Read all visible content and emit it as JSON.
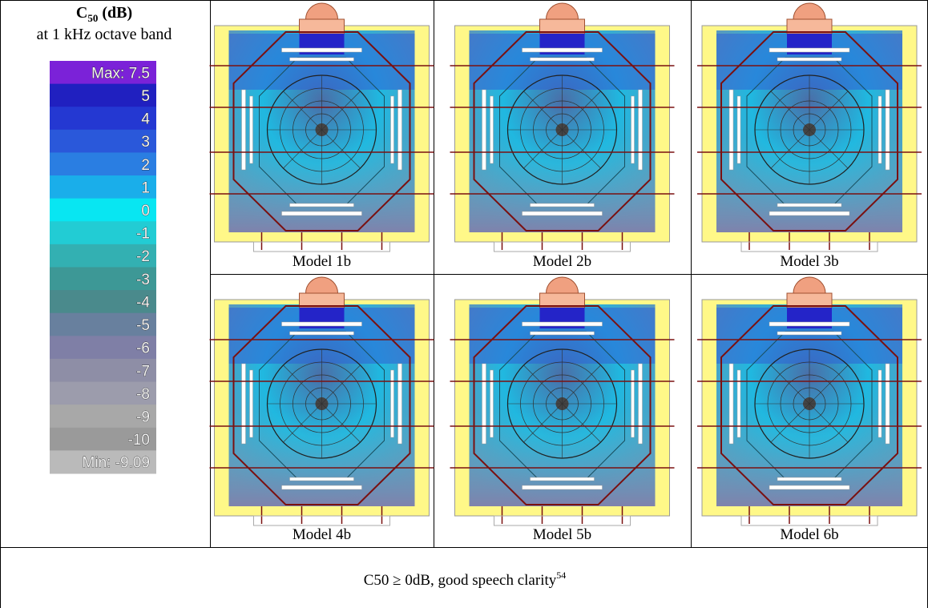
{
  "legend": {
    "title": {
      "symbol": "C",
      "subscript": "50",
      "unit": "(dB)"
    },
    "subtitle": "at 1 kHz octave band",
    "scale": [
      {
        "label": "Max: 7.5",
        "color": "#7b22d8"
      },
      {
        "label": "5",
        "color": "#2020c0"
      },
      {
        "label": "4",
        "color": "#2438d2"
      },
      {
        "label": "3",
        "color": "#2a58da"
      },
      {
        "label": "2",
        "color": "#2a7ee2"
      },
      {
        "label": "1",
        "color": "#1aaeea"
      },
      {
        "label": "0",
        "color": "#08e6f2"
      },
      {
        "label": "-1",
        "color": "#22ccd4"
      },
      {
        "label": "-2",
        "color": "#33b0b2"
      },
      {
        "label": "-3",
        "color": "#3d9896"
      },
      {
        "label": "-4",
        "color": "#4a8a8c"
      },
      {
        "label": "-5",
        "color": "#68809e"
      },
      {
        "label": "-6",
        "color": "#7f7fa6"
      },
      {
        "label": "-7",
        "color": "#8e8ea6"
      },
      {
        "label": "-8",
        "color": "#9c9cac"
      },
      {
        "label": "-9",
        "color": "#a8a8a8"
      },
      {
        "label": "-10",
        "color": "#9a9a9a"
      },
      {
        "label": "Min: -9.09",
        "color": "#bababa"
      }
    ]
  },
  "models": [
    "Model 1b",
    "Model 2b",
    "Model 3b",
    "Model 4b",
    "Model 5b",
    "Model 6b"
  ],
  "caption": {
    "text": "C50 ≥ 0dB, good speech clarity",
    "superscript": "54"
  }
}
